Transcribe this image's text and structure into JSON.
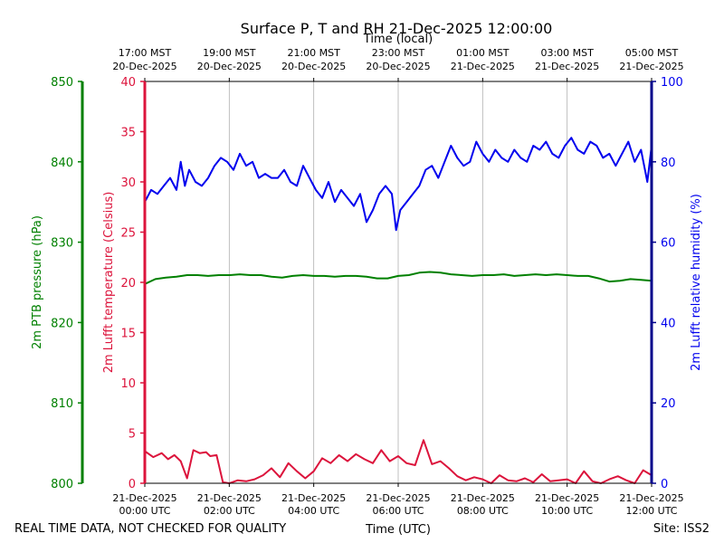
{
  "chart_data": {
    "type": "line",
    "title": "Surface P, T and RH 21-Dec-2025 12:00:00",
    "top_axis": {
      "label": "Time (local)",
      "ticks": [
        {
          "t": 0,
          "line1": "17:00 MST",
          "line2": "20-Dec-2025"
        },
        {
          "t": 2,
          "line1": "19:00 MST",
          "line2": "20-Dec-2025"
        },
        {
          "t": 4,
          "line1": "21:00 MST",
          "line2": "20-Dec-2025"
        },
        {
          "t": 6,
          "line1": "23:00 MST",
          "line2": "20-Dec-2025"
        },
        {
          "t": 8,
          "line1": "01:00 MST",
          "line2": "21-Dec-2025"
        },
        {
          "t": 10,
          "line1": "03:00 MST",
          "line2": "21-Dec-2025"
        },
        {
          "t": 12,
          "line1": "05:00 MST",
          "line2": "21-Dec-2025"
        }
      ]
    },
    "bottom_axis": {
      "label": "Time (UTC)",
      "range": [
        0,
        12
      ],
      "ticks": [
        {
          "t": 0,
          "line1": "21-Dec-2025",
          "line2": "00:00 UTC"
        },
        {
          "t": 2,
          "line1": "21-Dec-2025",
          "line2": "02:00 UTC"
        },
        {
          "t": 4,
          "line1": "21-Dec-2025",
          "line2": "04:00 UTC"
        },
        {
          "t": 6,
          "line1": "21-Dec-2025",
          "line2": "06:00 UTC"
        },
        {
          "t": 8,
          "line1": "21-Dec-2025",
          "line2": "08:00 UTC"
        },
        {
          "t": 10,
          "line1": "21-Dec-2025",
          "line2": "10:00 UTC"
        },
        {
          "t": 12,
          "line1": "21-Dec-2025",
          "line2": "12:00 UTC"
        }
      ]
    },
    "pressure_axis": {
      "label": "2m PTB pressure (hPa)",
      "range": [
        800,
        850
      ],
      "ticks": [
        800,
        810,
        820,
        830,
        840,
        850
      ],
      "color": "#008000"
    },
    "temperature_axis": {
      "label": "2m Lufft temperature (Celsius)",
      "range": [
        0,
        40
      ],
      "ticks": [
        0,
        5,
        10,
        15,
        20,
        25,
        30,
        35,
        40
      ],
      "color": "#dc143c"
    },
    "humidity_axis": {
      "label": "2m Lufft relative humidity (%)",
      "range": [
        0,
        100
      ],
      "ticks": [
        0,
        20,
        40,
        60,
        80,
        100
      ],
      "color": "#0000ee"
    },
    "series": [
      {
        "name": "2m PTB pressure",
        "axis": "pressure",
        "color": "#008000",
        "x": [
          0,
          0.25,
          0.5,
          0.75,
          1,
          1.25,
          1.5,
          1.75,
          2,
          2.25,
          2.5,
          2.75,
          3,
          3.25,
          3.5,
          3.75,
          4,
          4.25,
          4.5,
          4.75,
          5,
          5.25,
          5.5,
          5.75,
          6,
          6.25,
          6.5,
          6.75,
          7,
          7.25,
          7.5,
          7.75,
          8,
          8.25,
          8.5,
          8.75,
          9,
          9.25,
          9.5,
          9.75,
          10,
          10.25,
          10.5,
          10.75,
          11,
          11.25,
          11.5,
          11.75,
          12
        ],
        "values": [
          824.8,
          825.4,
          825.6,
          825.7,
          825.9,
          825.9,
          825.8,
          825.9,
          825.9,
          826.0,
          825.9,
          825.9,
          825.7,
          825.6,
          825.8,
          825.9,
          825.8,
          825.8,
          825.7,
          825.8,
          825.8,
          825.7,
          825.5,
          825.5,
          825.8,
          825.9,
          826.2,
          826.3,
          826.2,
          826.0,
          825.9,
          825.8,
          825.9,
          825.9,
          826.0,
          825.8,
          825.9,
          826.0,
          825.9,
          826.0,
          825.9,
          825.8,
          825.8,
          825.5,
          825.1,
          825.2,
          825.4,
          825.3,
          825.2
        ]
      },
      {
        "name": "2m Lufft temperature",
        "axis": "temperature",
        "color": "#dc143c",
        "x": [
          0,
          0.2,
          0.4,
          0.55,
          0.7,
          0.85,
          1,
          1.15,
          1.3,
          1.45,
          1.55,
          1.7,
          1.85,
          2,
          2.2,
          2.4,
          2.6,
          2.8,
          3,
          3.2,
          3.4,
          3.6,
          3.8,
          4,
          4.2,
          4.4,
          4.6,
          4.8,
          5,
          5.2,
          5.4,
          5.6,
          5.8,
          6,
          6.2,
          6.4,
          6.6,
          6.8,
          7,
          7.2,
          7.4,
          7.6,
          7.8,
          8,
          8.2,
          8.4,
          8.6,
          8.8,
          9,
          9.2,
          9.4,
          9.6,
          9.8,
          10,
          10.2,
          10.4,
          10.6,
          10.8,
          11,
          11.2,
          11.4,
          11.6,
          11.8,
          12
        ],
        "values": [
          3.2,
          2.6,
          3.0,
          2.4,
          2.8,
          2.2,
          0.5,
          3.3,
          3.0,
          3.1,
          2.7,
          2.8,
          0.1,
          0.0,
          0.3,
          0.2,
          0.4,
          0.8,
          1.5,
          0.6,
          2.0,
          1.2,
          0.5,
          1.2,
          2.5,
          2.0,
          2.8,
          2.2,
          2.9,
          2.4,
          2.0,
          3.3,
          2.2,
          2.7,
          2.0,
          1.8,
          4.3,
          1.9,
          2.2,
          1.5,
          0.7,
          0.3,
          0.6,
          0.4,
          0.0,
          0.8,
          0.3,
          0.2,
          0.5,
          0.1,
          0.9,
          0.2,
          0.3,
          0.4,
          0.0,
          1.2,
          0.2,
          0.0,
          0.4,
          0.7,
          0.3,
          0.0,
          1.3,
          0.8
        ]
      },
      {
        "name": "2m Lufft relative humidity",
        "axis": "humidity",
        "color": "#0000ee",
        "x": [
          0,
          0.15,
          0.3,
          0.45,
          0.6,
          0.75,
          0.85,
          0.95,
          1.05,
          1.2,
          1.35,
          1.5,
          1.65,
          1.8,
          1.95,
          2.1,
          2.25,
          2.4,
          2.55,
          2.7,
          2.85,
          3,
          3.15,
          3.3,
          3.45,
          3.6,
          3.75,
          3.9,
          4.05,
          4.2,
          4.35,
          4.5,
          4.65,
          4.8,
          4.95,
          5.1,
          5.25,
          5.4,
          5.55,
          5.7,
          5.85,
          5.95,
          6.05,
          6.2,
          6.35,
          6.5,
          6.65,
          6.8,
          6.95,
          7.1,
          7.25,
          7.4,
          7.55,
          7.7,
          7.85,
          8,
          8.15,
          8.3,
          8.45,
          8.6,
          8.75,
          8.9,
          9.05,
          9.2,
          9.35,
          9.5,
          9.65,
          9.8,
          9.95,
          10.1,
          10.25,
          10.4,
          10.55,
          10.7,
          10.85,
          11,
          11.15,
          11.3,
          11.45,
          11.6,
          11.75,
          11.9,
          12
        ],
        "values": [
          70,
          73,
          72,
          74,
          76,
          73,
          80,
          74,
          78,
          75,
          74,
          76,
          79,
          81,
          80,
          78,
          82,
          79,
          80,
          76,
          77,
          76,
          76,
          78,
          75,
          74,
          79,
          76,
          73,
          71,
          75,
          70,
          73,
          71,
          69,
          72,
          65,
          68,
          72,
          74,
          72,
          63,
          68,
          70,
          72,
          74,
          78,
          79,
          76,
          80,
          84,
          81,
          79,
          80,
          85,
          82,
          80,
          83,
          81,
          80,
          83,
          81,
          80,
          84,
          83,
          85,
          82,
          81,
          84,
          86,
          83,
          82,
          85,
          84,
          81,
          82,
          79,
          82,
          85,
          80,
          83,
          75,
          84
        ]
      }
    ],
    "footer_left": "REAL TIME DATA, NOT CHECKED FOR QUALITY",
    "footer_right": "Site: ISS2"
  }
}
